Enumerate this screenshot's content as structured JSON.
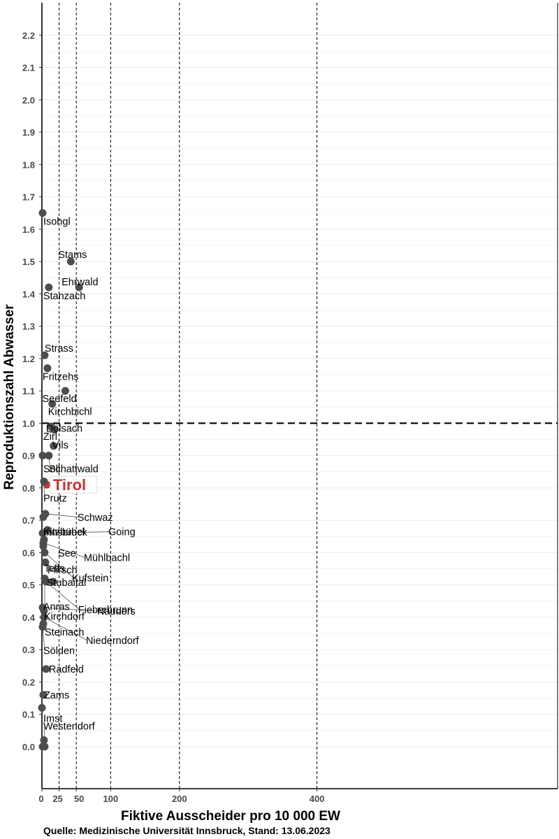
{
  "chart_data": {
    "type": "scatter",
    "title": "",
    "xlabel": "Fiktive Ausscheider pro 10 000 EW",
    "ylabel": "Reproduktionszahl Abwasser",
    "xlim": [
      0,
      750
    ],
    "ylim": [
      -0.13,
      2.3
    ],
    "x_ticks": [
      0,
      25,
      50,
      100,
      200,
      400
    ],
    "y_ticks": [
      0.0,
      0.1,
      0.2,
      0.3,
      0.4,
      0.5,
      0.6,
      0.7,
      0.8,
      0.9,
      1.0,
      1.1,
      1.2,
      1.3,
      1.4,
      1.5,
      1.6,
      1.7,
      1.8,
      1.9,
      2.0,
      2.1,
      2.2
    ],
    "x_reference_lines": [
      25,
      50,
      100,
      200,
      400
    ],
    "y_reference_line": 1.0,
    "grid": true,
    "point_color": "#4d4d4d",
    "highlight_color": "#cc3333",
    "points": [
      {
        "name": "Isohgl",
        "x": 1,
        "y": 1.65
      },
      {
        "name": "Stams",
        "x": 42,
        "y": 1.5
      },
      {
        "name": "Ehrwald",
        "x": 54,
        "y": 1.42
      },
      {
        "name": "Stanzach",
        "x": 10,
        "y": 1.42
      },
      {
        "name": "Strass",
        "x": 4,
        "y": 1.21
      },
      {
        "name": "Fritzehs",
        "x": 8,
        "y": 1.17
      },
      {
        "name": "Seefeld",
        "x": 34,
        "y": 1.1
      },
      {
        "name": "Kirchbichl",
        "x": 15,
        "y": 1.06
      },
      {
        "name": "Dölsach",
        "x": 18,
        "y": 0.98
      },
      {
        "name": "Zirl",
        "x": 13,
        "y": 0.99
      },
      {
        "name": "Vils",
        "x": 17,
        "y": 0.93
      },
      {
        "name": "Söll",
        "x": 1,
        "y": 0.9
      },
      {
        "name": "Schattwald",
        "x": 10,
        "y": 0.9
      },
      {
        "name": "Tirol",
        "x": 7,
        "y": 0.81,
        "highlight": true
      },
      {
        "name": "Prutz",
        "x": 3,
        "y": 0.82
      },
      {
        "name": "Schwaz",
        "x": 5,
        "y": 0.72
      },
      {
        "name": "Kitzbühel",
        "x": 2,
        "y": 0.71
      },
      {
        "name": "Innsbruck",
        "x": 8,
        "y": 0.67
      },
      {
        "name": "Going",
        "x": 1,
        "y": 0.66
      },
      {
        "name": "See",
        "x": 3,
        "y": 0.64
      },
      {
        "name": "Mühlbachl",
        "x": 2,
        "y": 0.63
      },
      {
        "name": "Telfs",
        "x": 2,
        "y": 0.62
      },
      {
        "name": "Kufstein",
        "x": 4,
        "y": 0.6
      },
      {
        "name": "Flirsch",
        "x": 5,
        "y": 0.57
      },
      {
        "name": "Stubaital",
        "x": 16,
        "y": 0.51
      },
      {
        "name": "Anras",
        "x": 4,
        "y": 0.52
      },
      {
        "name": "Fieberbrunn",
        "x": 6,
        "y": 0.51
      },
      {
        "name": "Kirchdorf",
        "x": 3,
        "y": 0.42
      },
      {
        "name": "Nauders",
        "x": 1,
        "y": 0.43
      },
      {
        "name": "Steinach",
        "x": 2,
        "y": 0.38
      },
      {
        "name": "Sölden",
        "x": 1,
        "y": 0.37
      },
      {
        "name": "Niederndorf",
        "x": 3,
        "y": 0.4
      },
      {
        "name": "Radfeld",
        "x": 6,
        "y": 0.24
      },
      {
        "name": "Zams",
        "x": 2,
        "y": 0.16
      },
      {
        "name": "Imst",
        "x": 0,
        "y": 0.12
      },
      {
        "name": "Westendorf",
        "x": 3,
        "y": 0.02
      },
      {
        "name": "",
        "x": 1,
        "y": 0.0
      },
      {
        "name": "",
        "x": 4,
        "y": 0.0
      }
    ]
  },
  "footer": {
    "source": "Quelle: Medizinische Universität Innsbruck, Stand: 13.06.2023"
  }
}
